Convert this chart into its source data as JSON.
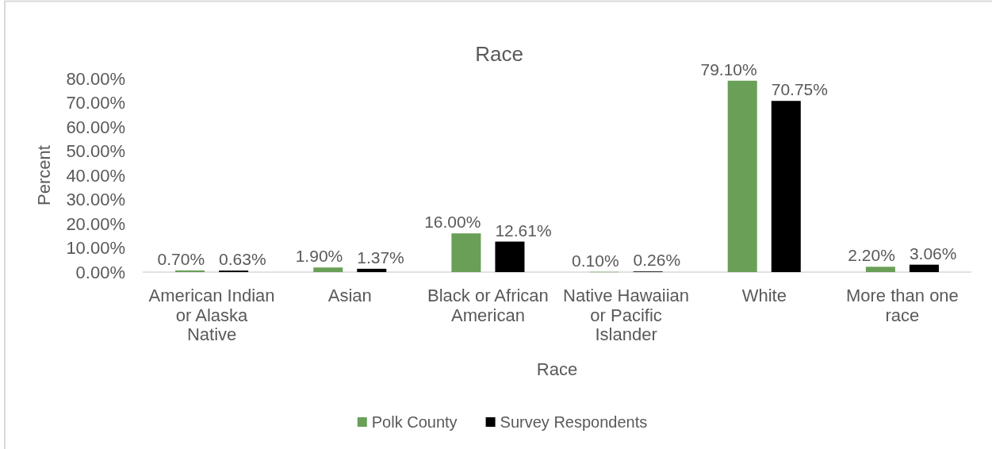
{
  "chart_data": {
    "type": "bar",
    "title": "Race",
    "xlabel": "Race",
    "ylabel": "Percent",
    "categories": [
      "American Indian or Alaska Native",
      "Asian",
      "Black or African American",
      "Native Hawaiian or Pacific Islander",
      "White",
      "More than one race"
    ],
    "series": [
      {
        "name": "Polk County",
        "color": "#6a9f58",
        "values": [
          0.7,
          1.9,
          16.0,
          0.1,
          79.1,
          2.2
        ],
        "value_labels": [
          "0.70%",
          "1.90%",
          "16.00%",
          "0.10%",
          "79.10%",
          "2.20%"
        ]
      },
      {
        "name": "Survey Respondents",
        "color": "#000000",
        "values": [
          0.63,
          1.37,
          12.61,
          0.26,
          70.75,
          3.06
        ],
        "value_labels": [
          "0.63%",
          "1.37%",
          "12.61%",
          "0.26%",
          "70.75%",
          "3.06%"
        ]
      }
    ],
    "ylim": [
      0,
      80
    ],
    "yticks": [
      {
        "value": 0,
        "label": "0.00%"
      },
      {
        "value": 10,
        "label": "10.00%"
      },
      {
        "value": 20,
        "label": "20.00%"
      },
      {
        "value": 30,
        "label": "30.00%"
      },
      {
        "value": 40,
        "label": "40.00%"
      },
      {
        "value": 50,
        "label": "50.00%"
      },
      {
        "value": 60,
        "label": "60.00%"
      },
      {
        "value": 70,
        "label": "70.00%"
      },
      {
        "value": 80,
        "label": "80.00%"
      }
    ],
    "legend": "bottom"
  }
}
